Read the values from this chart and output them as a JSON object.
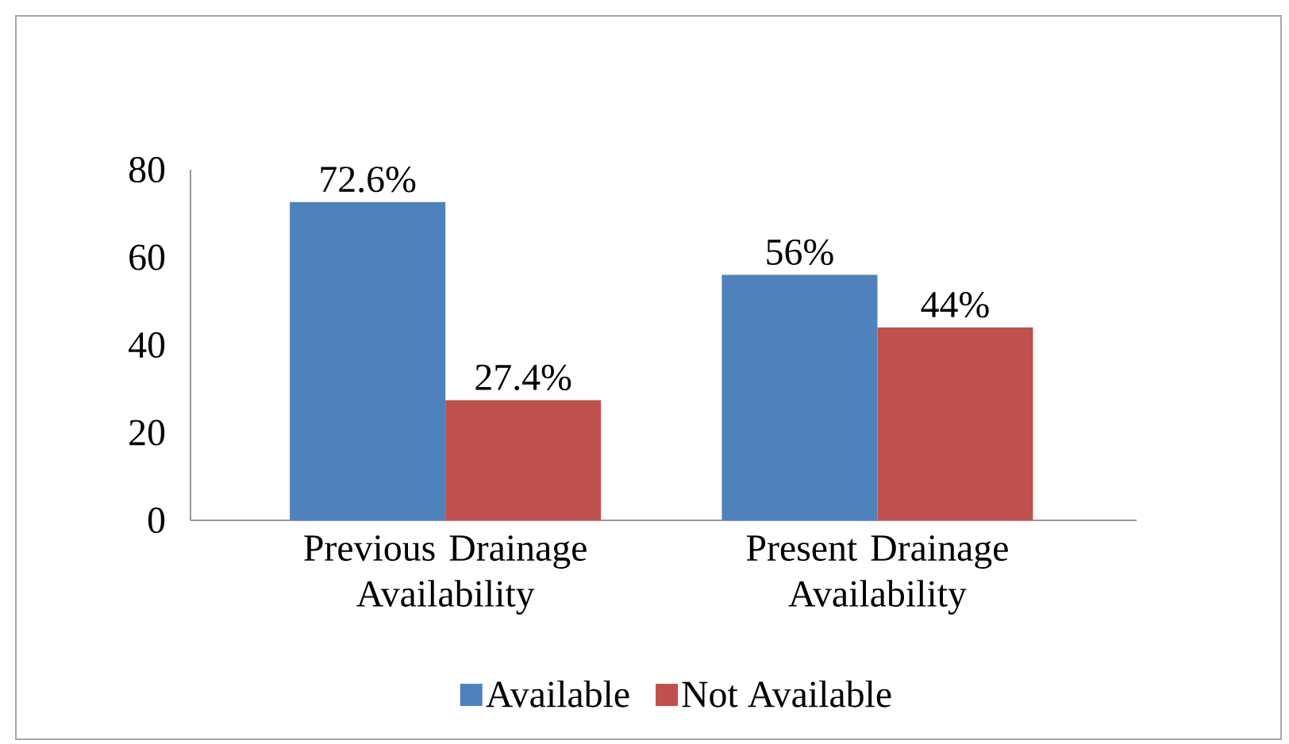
{
  "chart_data": {
    "type": "bar",
    "categories": [
      "Previous Drainage Availability",
      "Present Drainage Availability"
    ],
    "series": [
      {
        "name": "Available",
        "color": "#4f81bd",
        "values": [
          72.6,
          56
        ],
        "value_labels": [
          "72.6%",
          "56%"
        ]
      },
      {
        "name": "Not Available",
        "color": "#c0504d",
        "values": [
          27.4,
          44
        ],
        "value_labels": [
          "27.4%",
          "44%"
        ]
      }
    ],
    "ylim": [
      0,
      80
    ],
    "yticks": [
      0,
      20,
      40,
      60,
      80
    ],
    "legend": "bottom"
  }
}
